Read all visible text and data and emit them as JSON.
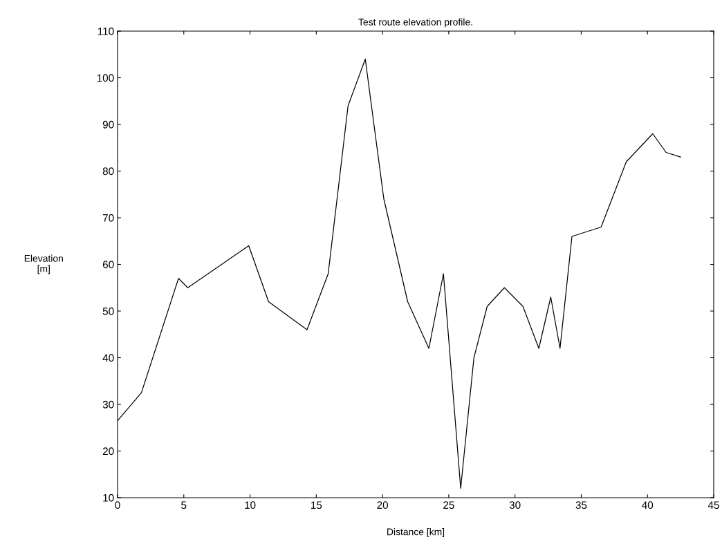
{
  "chart_data": {
    "type": "line",
    "title": "Test route elevation profile.",
    "xlabel": "Distance [km]",
    "ylabel": "Elevation\n[m]",
    "x": [
      0,
      1.8,
      4.6,
      5.3,
      9.9,
      11.4,
      14.3,
      15.9,
      17.4,
      18.7,
      20.1,
      21.9,
      23.5,
      24.6,
      25.9,
      26.9,
      27.9,
      29.2,
      30.6,
      31.8,
      32.7,
      33.4,
      34.3,
      36.5,
      38.4,
      40.4,
      41.4,
      42.5
    ],
    "series": [
      {
        "color": "#000000",
        "values": [
          26.5,
          32.5,
          57,
          55,
          64,
          52,
          46,
          58,
          94,
          104,
          74,
          52,
          42,
          58,
          12,
          40,
          51,
          55,
          51,
          42,
          53,
          42,
          66,
          68,
          82,
          88,
          84,
          83
        ]
      }
    ],
    "xlim": [
      0,
      45
    ],
    "xticks": [
      0,
      5,
      10,
      15,
      20,
      25,
      30,
      35,
      40,
      45
    ],
    "ylim": [
      10,
      110
    ],
    "yticks": [
      10,
      20,
      30,
      40,
      50,
      60,
      70,
      80,
      90,
      100,
      110
    ],
    "grid": false,
    "legend": false,
    "marker": "none",
    "line_style": "solid"
  }
}
